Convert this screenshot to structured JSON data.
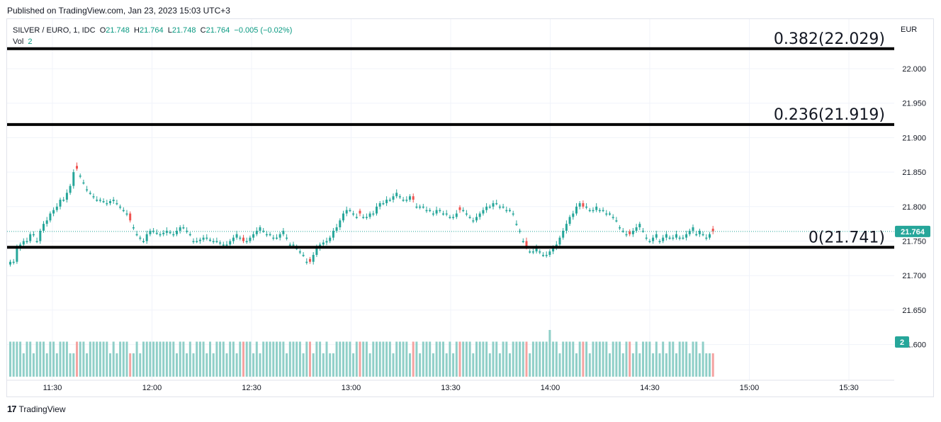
{
  "header": {
    "published": "Published on TradingView.com, Jan 23, 2023 15:03 UTC+3"
  },
  "legend": {
    "symbol": "SILVER / EURO, 1, IDC",
    "o_label": "O",
    "o_value": "21.748",
    "h_label": "H",
    "h_value": "21.764",
    "l_label": "L",
    "l_value": "21.748",
    "c_label": "C",
    "c_value": "21.764",
    "change": "−0.005 (−0.02%)",
    "vol_label": "Vol",
    "vol_value": "2"
  },
  "footer": {
    "brand": "TradingView",
    "logo_text": "17"
  },
  "colors": {
    "up": "#26a69a",
    "down": "#ef5350",
    "vol_up": "#8fcfc8",
    "vol_down": "#f4a3a1",
    "fib": "#000000",
    "grid": "#f0f3fa"
  },
  "chart_data": {
    "type": "candlestick",
    "currency": "EUR",
    "ylim": [
      21.59,
      22.06
    ],
    "y_ticks": [
      "22.000",
      "21.950",
      "21.900",
      "21.850",
      "21.800",
      "21.750",
      "21.700",
      "21.650",
      "21.600"
    ],
    "x_ticks": [
      "11:30",
      "12:00",
      "12:30",
      "13:00",
      "13:30",
      "14:00",
      "14:30",
      "15:00",
      "15:30"
    ],
    "last_price": "21.764",
    "volume_badge": "2",
    "fib_levels": [
      {
        "label": "0.382(22.029)",
        "price": 22.029
      },
      {
        "label": "0.236(21.919)",
        "price": 21.919
      },
      {
        "label": "0(21.741)",
        "price": 21.741
      }
    ],
    "time_range": [
      "11:20",
      "15:03"
    ],
    "closes": [
      21.72,
      21.72,
      21.74,
      21.745,
      21.75,
      21.75,
      21.76,
      21.76,
      21.75,
      21.765,
      21.775,
      21.78,
      21.79,
      21.795,
      21.8,
      21.81,
      21.81,
      21.82,
      21.83,
      21.85,
      21.855,
      21.845,
      21.835,
      21.825,
      21.82,
      21.815,
      21.81,
      21.81,
      21.808,
      21.805,
      21.808,
      21.81,
      21.805,
      21.8,
      21.795,
      21.79,
      21.78,
      21.77,
      21.76,
      21.755,
      21.75,
      21.76,
      21.765,
      21.765,
      21.762,
      21.76,
      21.762,
      21.765,
      21.763,
      21.76,
      21.765,
      21.77,
      21.77,
      21.765,
      21.76,
      21.75,
      21.75,
      21.752,
      21.755,
      21.755,
      21.752,
      21.75,
      21.75,
      21.748,
      21.745,
      21.745,
      21.75,
      21.755,
      21.76,
      21.755,
      21.75,
      21.75,
      21.755,
      21.76,
      21.765,
      21.77,
      21.765,
      21.76,
      21.76,
      21.755,
      21.755,
      21.76,
      21.765,
      21.755,
      21.745,
      21.745,
      21.74,
      21.735,
      21.73,
      21.72,
      21.72,
      21.73,
      21.74,
      21.745,
      21.748,
      21.75,
      21.755,
      21.765,
      21.77,
      21.78,
      21.79,
      21.795,
      21.795,
      21.79,
      21.785,
      21.79,
      21.785,
      21.785,
      21.79,
      21.79,
      21.8,
      21.805,
      21.805,
      21.81,
      21.81,
      21.815,
      21.82,
      21.815,
      21.81,
      21.81,
      21.815,
      21.81,
      21.8,
      21.8,
      21.8,
      21.795,
      21.795,
      21.79,
      21.795,
      21.795,
      21.79,
      21.79,
      21.785,
      21.785,
      21.79,
      21.795,
      21.795,
      21.79,
      21.785,
      21.78,
      21.785,
      21.79,
      21.795,
      21.8,
      21.8,
      21.805,
      21.805,
      21.8,
      21.8,
      21.795,
      21.795,
      21.79,
      21.775,
      21.765,
      21.75,
      21.742,
      21.735,
      21.735,
      21.74,
      21.735,
      21.73,
      21.73,
      21.735,
      21.74,
      21.745,
      21.755,
      21.765,
      21.775,
      21.785,
      21.79,
      21.8,
      21.805,
      21.8,
      21.8,
      21.795,
      21.795,
      21.8,
      21.795,
      21.795,
      21.79,
      21.79,
      21.785,
      21.78,
      21.77,
      21.765,
      21.76,
      21.76,
      21.765,
      21.77,
      21.775,
      21.765,
      21.755,
      21.75,
      21.755,
      21.76,
      21.75,
      21.755,
      21.76,
      21.755,
      21.755,
      21.76,
      21.755,
      21.755,
      21.76,
      21.765,
      21.77,
      21.76,
      21.765,
      21.76,
      21.755,
      21.76,
      21.764
    ],
    "volumes": [
      3,
      3,
      3,
      3,
      2,
      3,
      3,
      2,
      3,
      3,
      3,
      2,
      3,
      3,
      2,
      3,
      3,
      3,
      2,
      2,
      3,
      3,
      3,
      2,
      3,
      3,
      3,
      3,
      3,
      3,
      2,
      3,
      2,
      3,
      3,
      3,
      2,
      2,
      3,
      2,
      3,
      3,
      3,
      3,
      3,
      3,
      3,
      3,
      3,
      3,
      2,
      3,
      3,
      2,
      3,
      2,
      3,
      3,
      3,
      2,
      3,
      2,
      3,
      3,
      3,
      2,
      3,
      3,
      2,
      3,
      3,
      3,
      3,
      2,
      3,
      2,
      3,
      3,
      3,
      3,
      3,
      3,
      3,
      2,
      3,
      3,
      3,
      3,
      2,
      3,
      3,
      2,
      3,
      3,
      2,
      3,
      2,
      2,
      3,
      3,
      3,
      3,
      3,
      2,
      3,
      3,
      3,
      3,
      2,
      3,
      3,
      3,
      3,
      3,
      3,
      2,
      3,
      3,
      3,
      3,
      2,
      3,
      3,
      2,
      3,
      3,
      3,
      2,
      3,
      3,
      3,
      2,
      3,
      2,
      3,
      3,
      3,
      3,
      3,
      2,
      3,
      3,
      3,
      3,
      2,
      3,
      3,
      2,
      3,
      3,
      2,
      3,
      3,
      3,
      3,
      3,
      2,
      3,
      3,
      3,
      3,
      3,
      4,
      3,
      3,
      2,
      3,
      3,
      3,
      3,
      2,
      3,
      3,
      3,
      2,
      3,
      3,
      3,
      3,
      3,
      2,
      3,
      3,
      3,
      2,
      3,
      3,
      2,
      3,
      2,
      3,
      3,
      3,
      2,
      3,
      2,
      3,
      2,
      3,
      3,
      2,
      3,
      3,
      3,
      2,
      3,
      3,
      2,
      3,
      2
    ],
    "down_bars": [
      20,
      36,
      70,
      90,
      105,
      121,
      135,
      155,
      172,
      186,
      211,
      232,
      244
    ]
  }
}
